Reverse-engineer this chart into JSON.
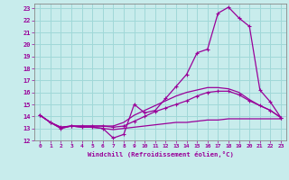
{
  "xlabel": "Windchill (Refroidissement éolien,°C)",
  "background_color": "#c8ecec",
  "grid_color": "#a0d8d8",
  "line_color": "#990099",
  "xlim": [
    -0.5,
    23.5
  ],
  "ylim": [
    12,
    23.4
  ],
  "xticks": [
    0,
    1,
    2,
    3,
    4,
    5,
    6,
    7,
    8,
    9,
    10,
    11,
    12,
    13,
    14,
    15,
    16,
    17,
    18,
    19,
    20,
    21,
    22,
    23
  ],
  "yticks": [
    12,
    13,
    14,
    15,
    16,
    17,
    18,
    19,
    20,
    21,
    22,
    23
  ],
  "series0_x": [
    0,
    1,
    2,
    3,
    4,
    5,
    6,
    7,
    8,
    9,
    10,
    11,
    12,
    13,
    14,
    15,
    16,
    17,
    18,
    19,
    20,
    21,
    22,
    23
  ],
  "series0_y": [
    14.1,
    13.5,
    13.0,
    13.2,
    13.1,
    13.1,
    13.0,
    12.2,
    12.5,
    15.0,
    14.3,
    14.5,
    15.5,
    16.5,
    17.5,
    19.3,
    19.6,
    22.6,
    23.1,
    22.2,
    21.5,
    16.2,
    15.2,
    13.9
  ],
  "series1_x": [
    0,
    1,
    2,
    3,
    4,
    5,
    6,
    7,
    8,
    9,
    10,
    11,
    12,
    13,
    14,
    15,
    16,
    17,
    18,
    19,
    20,
    21,
    22,
    23
  ],
  "series1_y": [
    14.1,
    13.5,
    13.0,
    13.2,
    13.1,
    13.1,
    13.0,
    12.9,
    13.0,
    13.1,
    13.2,
    13.3,
    13.4,
    13.5,
    13.5,
    13.6,
    13.7,
    13.7,
    13.8,
    13.8,
    13.8,
    13.8,
    13.8,
    13.8
  ],
  "series2_x": [
    0,
    1,
    2,
    3,
    4,
    5,
    6,
    7,
    8,
    9,
    10,
    11,
    12,
    13,
    14,
    15,
    16,
    17,
    18,
    19,
    20,
    21,
    22,
    23
  ],
  "series2_y": [
    14.1,
    13.5,
    13.1,
    13.2,
    13.2,
    13.2,
    13.2,
    13.1,
    13.2,
    13.6,
    14.0,
    14.4,
    14.7,
    15.0,
    15.3,
    15.7,
    16.0,
    16.1,
    16.1,
    15.8,
    15.3,
    14.9,
    14.5,
    13.9
  ],
  "series3_x": [
    0,
    1,
    2,
    3,
    4,
    5,
    6,
    7,
    8,
    9,
    10,
    11,
    12,
    13,
    14,
    15,
    16,
    17,
    18,
    19,
    20,
    21,
    22,
    23
  ],
  "series3_y": [
    14.1,
    13.5,
    13.1,
    13.2,
    13.2,
    13.2,
    13.2,
    13.2,
    13.5,
    14.1,
    14.5,
    14.9,
    15.3,
    15.7,
    16.0,
    16.2,
    16.4,
    16.4,
    16.3,
    16.0,
    15.4,
    14.9,
    14.5,
    13.9
  ]
}
